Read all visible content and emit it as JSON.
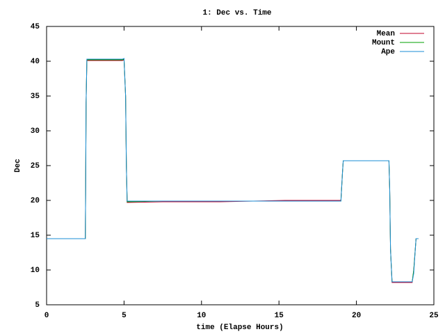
{
  "chart_data": {
    "type": "line",
    "title": "1: Dec vs. Time",
    "x_label": "time (Elapse Hours)",
    "y_label": "Dec",
    "x": [
      0,
      2.5,
      2.52,
      2.55,
      2.6,
      4.9,
      5.0,
      5.1,
      5.15,
      5.2,
      7.5,
      11.2,
      15.4,
      18.6,
      19.0,
      19.1,
      19.15,
      22.1,
      22.15,
      22.2,
      22.3,
      23.6,
      23.7,
      23.8,
      23.85,
      24.0
    ],
    "series": [
      {
        "name": "Mean",
        "color": "#c0002a",
        "values": [
          14.5,
          14.5,
          21,
          34,
          40.1,
          40.1,
          40.2,
          35,
          25,
          19.7,
          19.8,
          19.8,
          20.0,
          20.0,
          20,
          24,
          25.7,
          25.7,
          21.5,
          13,
          8.2,
          8.2,
          10,
          13,
          14.5,
          14.5
        ]
      },
      {
        "name": "Mount",
        "color": "#00a000",
        "values": [
          14.5,
          14.5,
          21,
          34,
          40.2,
          40.2,
          40.3,
          35,
          25,
          19.8,
          19.9,
          19.9,
          19.9,
          19.9,
          19.9,
          24,
          25.7,
          25.7,
          21.5,
          13,
          8.3,
          8.3,
          10,
          13,
          14.5,
          14.5
        ]
      },
      {
        "name": "Ape",
        "color": "#1a8ed6",
        "values": [
          14.5,
          14.5,
          21,
          34,
          40.3,
          40.3,
          40.4,
          35,
          25,
          19.9,
          19.9,
          19.9,
          19.9,
          19.9,
          19.9,
          24,
          25.7,
          25.7,
          21.5,
          13,
          8.3,
          8.3,
          9.5,
          13,
          14.5,
          14.5
        ]
      }
    ],
    "xlim": [
      0,
      25
    ],
    "xticks": [
      0,
      5,
      10,
      15,
      20,
      25
    ],
    "ylim": [
      5,
      45
    ],
    "yticks": [
      5,
      10,
      15,
      20,
      25,
      30,
      35,
      40,
      45
    ],
    "grid": false,
    "legend_position": "top-right"
  }
}
